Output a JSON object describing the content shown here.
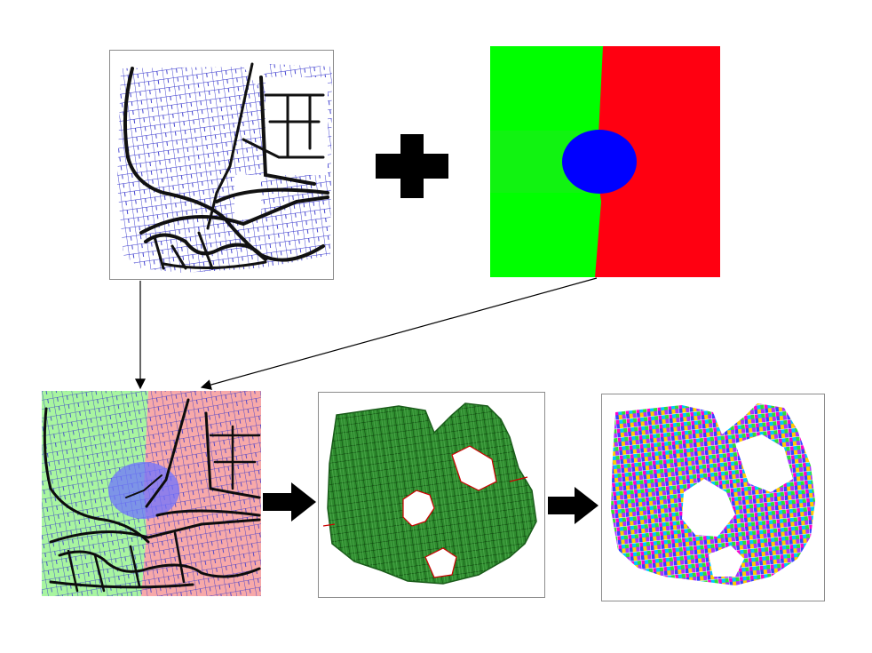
{
  "figure": {
    "palette": {
      "street_blue": "#3333cc",
      "road_black": "#111111",
      "zone_green": "#00ff00",
      "zone_red": "#ff0011",
      "zone_blue": "#0000ff",
      "parcel_green": "#1f7a1f",
      "outline_red": "#cc0000"
    },
    "panels": [
      {
        "id": "street-network-map",
        "icon": "street-map-icon"
      },
      {
        "id": "zoning-map",
        "icon": "zoning-map-icon"
      },
      {
        "id": "overlay-map",
        "icon": "overlay-map-icon"
      },
      {
        "id": "parcel-map",
        "icon": "parcel-map-icon"
      },
      {
        "id": "lots-map",
        "icon": "colored-lots-icon"
      }
    ],
    "operators": [
      {
        "id": "plus",
        "icon": "plus-icon"
      },
      {
        "id": "step-1",
        "icon": "right-arrow-icon"
      },
      {
        "id": "step-2",
        "icon": "right-arrow-icon"
      }
    ]
  }
}
